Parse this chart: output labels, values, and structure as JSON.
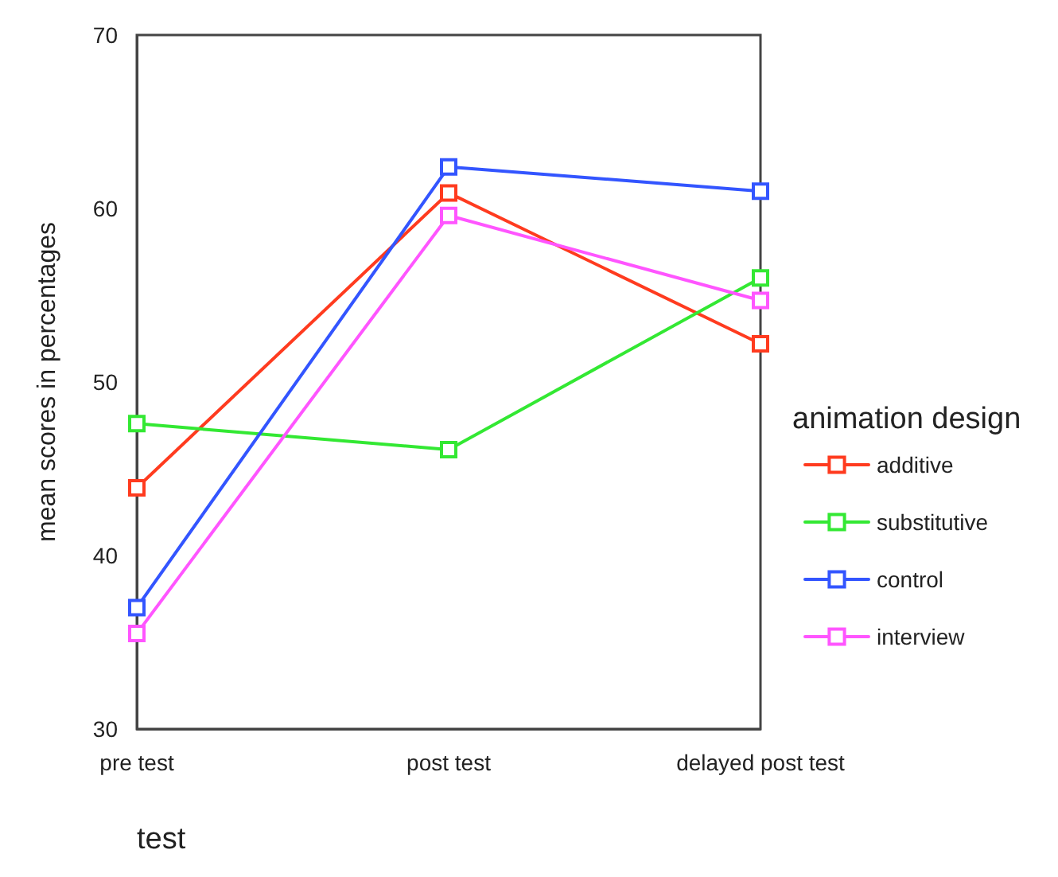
{
  "chart_data": {
    "type": "line",
    "xlabel": "test",
    "ylabel": "mean scores in percentages",
    "legend_title": "animation design",
    "categories": [
      "pre test",
      "post test",
      "delayed post test"
    ],
    "series": [
      {
        "name": "additive",
        "color": "#ff3b1f",
        "values": [
          43.9,
          60.9,
          52.2
        ]
      },
      {
        "name": "substitutive",
        "color": "#33e833",
        "values": [
          47.6,
          46.1,
          56.0
        ]
      },
      {
        "name": "control",
        "color": "#3355ff",
        "values": [
          37.0,
          62.4,
          61.0
        ]
      },
      {
        "name": "interview",
        "color": "#ff55ff",
        "values": [
          35.5,
          59.6,
          54.7
        ]
      }
    ],
    "ylim": [
      30,
      70
    ],
    "yticks": [
      30,
      40,
      50,
      60,
      70
    ],
    "grid": false,
    "legend": "right",
    "marker": "square",
    "line_style": "solid"
  }
}
